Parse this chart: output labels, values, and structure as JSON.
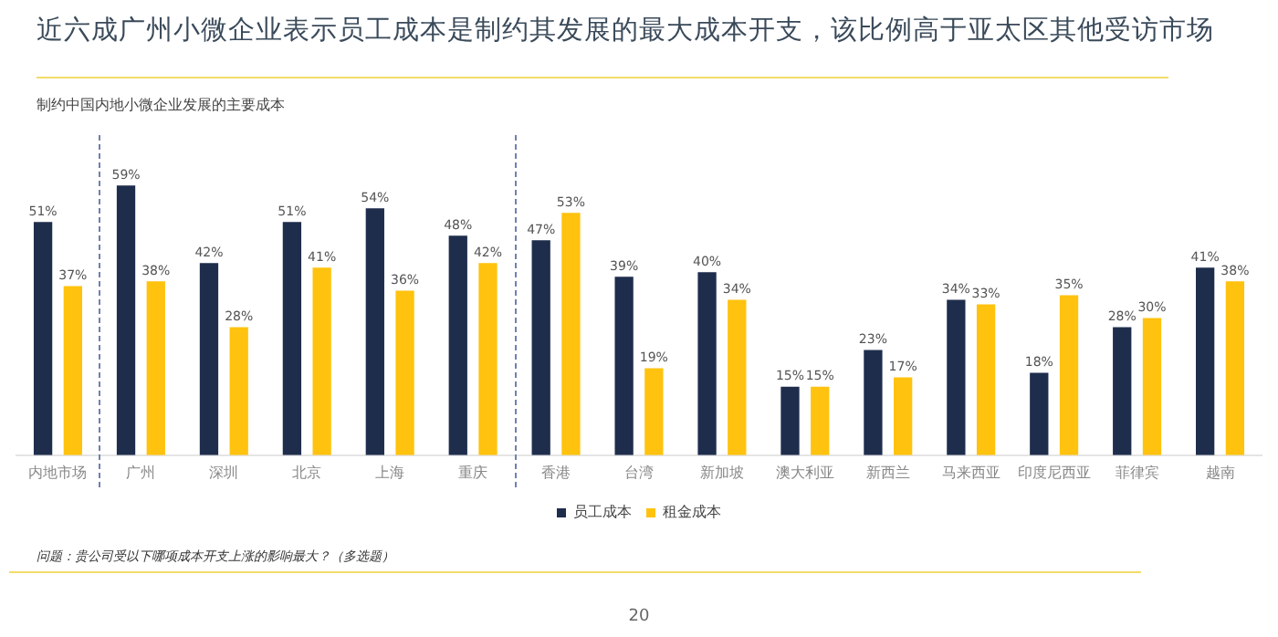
{
  "chart_data": {
    "type": "bar",
    "title": "近六成广州小微企业表示员工成本是制约其发展的最大成本开支，该比例高于亚太区其他受访市场",
    "subtitle": "制约中国内地小微企业发展的主要成本",
    "categories": [
      "内地市场",
      "广州",
      "深圳",
      "北京",
      "上海",
      "重庆",
      "香港",
      "台湾",
      "新加坡",
      "澳大利亚",
      "新西兰",
      "马来西亚",
      "印度尼西亚",
      "菲律宾",
      "越南"
    ],
    "series": [
      {
        "name": "员工成本",
        "color": "#1f2d4d",
        "values": [
          51,
          59,
          42,
          51,
          54,
          48,
          47,
          39,
          40,
          15,
          23,
          34,
          18,
          28,
          41
        ],
        "value_labels": [
          "51%",
          "59%",
          "42%",
          "51%",
          "54%",
          "48%",
          "47%",
          "39%",
          "40%",
          "15%",
          "23%",
          "34%",
          "18%",
          "28%",
          "41%"
        ]
      },
      {
        "name": "租金成本",
        "color": "#ffc20e",
        "values": [
          37,
          38,
          28,
          41,
          36,
          42,
          53,
          19,
          34,
          15,
          17,
          33,
          35,
          30,
          38
        ],
        "value_labels": [
          "37%",
          "38%",
          "28%",
          "41%",
          "36%",
          "42%",
          "53%",
          "19%",
          "34%",
          "15%",
          "17%",
          "33%",
          "35%",
          "30%",
          "38%"
        ]
      }
    ],
    "legend": "bottom",
    "grid": false,
    "annotations": [
      "问题：贵公司受以下哪项成本开支上涨的影响最大？（多选题）",
      "20"
    ]
  }
}
